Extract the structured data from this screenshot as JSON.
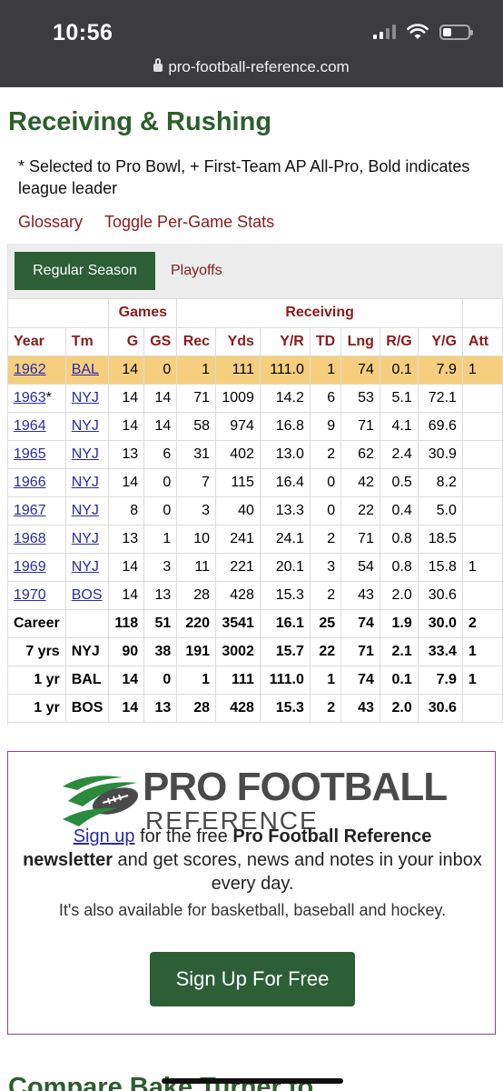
{
  "status_bar": {
    "time": "10:56"
  },
  "browser": {
    "url": "pro-football-reference.com"
  },
  "section": {
    "title": "Receiving & Rushing",
    "note": "* Selected to Pro Bowl, + First-Team AP All-Pro, Bold indicates league leader",
    "links": [
      "Glossary",
      "Toggle Per-Game Stats"
    ]
  },
  "tabs": {
    "active": "Regular Season",
    "other": "Playoffs"
  },
  "table": {
    "groups": {
      "games": "Games",
      "receiving": "Receiving"
    },
    "headers": [
      "Year",
      "Tm",
      "G",
      "GS",
      "Rec",
      "Yds",
      "Y/R",
      "TD",
      "Lng",
      "R/G",
      "Y/G",
      "Att"
    ],
    "rows": [
      {
        "year": "1962",
        "mark": "",
        "tm": "BAL",
        "g": "14",
        "gs": "0",
        "rec": "1",
        "yds": "111",
        "yr": "111.0",
        "td": "1",
        "lng": "74",
        "rg": "0.1",
        "yg": "7.9",
        "att": "1",
        "highlight": true
      },
      {
        "year": "1963",
        "mark": "*",
        "tm": "NYJ",
        "g": "14",
        "gs": "14",
        "rec": "71",
        "yds": "1009",
        "yr": "14.2",
        "td": "6",
        "lng": "53",
        "rg": "5.1",
        "yg": "72.1",
        "att": ""
      },
      {
        "year": "1964",
        "mark": "",
        "tm": "NYJ",
        "g": "14",
        "gs": "14",
        "rec": "58",
        "yds": "974",
        "yr": "16.8",
        "td": "9",
        "lng": "71",
        "rg": "4.1",
        "yg": "69.6",
        "att": ""
      },
      {
        "year": "1965",
        "mark": "",
        "tm": "NYJ",
        "g": "13",
        "gs": "6",
        "rec": "31",
        "yds": "402",
        "yr": "13.0",
        "td": "2",
        "lng": "62",
        "rg": "2.4",
        "yg": "30.9",
        "att": ""
      },
      {
        "year": "1966",
        "mark": "",
        "tm": "NYJ",
        "g": "14",
        "gs": "0",
        "rec": "7",
        "yds": "115",
        "yr": "16.4",
        "td": "0",
        "lng": "42",
        "rg": "0.5",
        "yg": "8.2",
        "att": ""
      },
      {
        "year": "1967",
        "mark": "",
        "tm": "NYJ",
        "g": "8",
        "gs": "0",
        "rec": "3",
        "yds": "40",
        "yr": "13.3",
        "td": "0",
        "lng": "22",
        "rg": "0.4",
        "yg": "5.0",
        "att": ""
      },
      {
        "year": "1968",
        "mark": "",
        "tm": "NYJ",
        "g": "13",
        "gs": "1",
        "rec": "10",
        "yds": "241",
        "yr": "24.1",
        "td": "2",
        "lng": "71",
        "rg": "0.8",
        "yg": "18.5",
        "att": ""
      },
      {
        "year": "1969",
        "mark": "",
        "tm": "NYJ",
        "g": "14",
        "gs": "3",
        "rec": "11",
        "yds": "221",
        "yr": "20.1",
        "td": "3",
        "lng": "54",
        "rg": "0.8",
        "yg": "15.8",
        "att": "1"
      },
      {
        "year": "1970",
        "mark": "",
        "tm": "BOS",
        "g": "14",
        "gs": "13",
        "rec": "28",
        "yds": "428",
        "yr": "15.3",
        "td": "2",
        "lng": "43",
        "rg": "2.0",
        "yg": "30.6",
        "att": ""
      }
    ],
    "totals": [
      {
        "label": "Career",
        "tm": "",
        "g": "118",
        "gs": "51",
        "rec": "220",
        "yds": "3541",
        "yr": "16.1",
        "td": "25",
        "lng": "74",
        "rg": "1.9",
        "yg": "30.0",
        "att": "2"
      },
      {
        "label": "7 yrs",
        "tm": "NYJ",
        "g": "90",
        "gs": "38",
        "rec": "191",
        "yds": "3002",
        "yr": "15.7",
        "td": "22",
        "lng": "71",
        "rg": "2.1",
        "yg": "33.4",
        "att": "1"
      },
      {
        "label": "1 yr",
        "tm": "BAL",
        "g": "14",
        "gs": "0",
        "rec": "1",
        "yds": "111",
        "yr": "111.0",
        "td": "1",
        "lng": "74",
        "rg": "0.1",
        "yg": "7.9",
        "att": "1"
      },
      {
        "label": "1 yr",
        "tm": "BOS",
        "g": "14",
        "gs": "13",
        "rec": "28",
        "yds": "428",
        "yr": "15.3",
        "td": "2",
        "lng": "43",
        "rg": "2.0",
        "yg": "30.6",
        "att": ""
      }
    ]
  },
  "ad": {
    "logo_line1": "PRO FOOTBALL",
    "logo_line2": "REFERENCE",
    "signup_link": "Sign up",
    "copy_pre": " for the free ",
    "copy_bold1": "Pro Football Reference",
    "copy_bold2": "newsletter",
    "copy_post": " and get scores, news and notes in your inbox every day.",
    "sub": "It's also available for basketball, baseball and hockey.",
    "button": "Sign Up For Free"
  },
  "next_section": {
    "title": "Compare Bake Turner to ..."
  }
}
